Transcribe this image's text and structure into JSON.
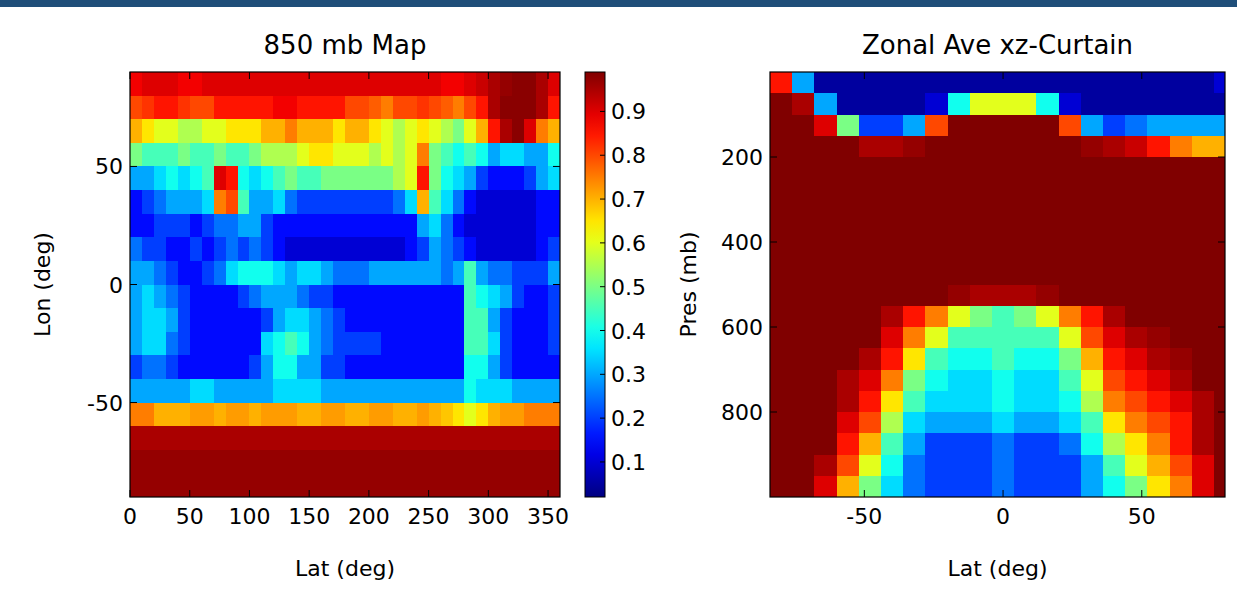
{
  "chart_data": [
    {
      "type": "heatmap",
      "title": "850 mb Map",
      "x_label": "Lat (deg)",
      "y_label": "Lon (deg)",
      "xlim": [
        0,
        360
      ],
      "ylim": [
        -90,
        90
      ],
      "xticks": [
        0,
        50,
        100,
        150,
        200,
        250,
        300,
        350
      ],
      "yticks": [
        -50,
        0,
        50
      ],
      "x": [
        5,
        15,
        25,
        35,
        45,
        55,
        65,
        75,
        85,
        95,
        105,
        115,
        125,
        135,
        145,
        155,
        165,
        175,
        185,
        195,
        205,
        215,
        225,
        235,
        245,
        255,
        265,
        275,
        285,
        295,
        305,
        315,
        325,
        335,
        345,
        355
      ],
      "y": [
        85,
        75,
        65,
        55,
        45,
        35,
        25,
        15,
        5,
        -5,
        -15,
        -25,
        -35,
        -45,
        -55,
        -65,
        -75,
        -85
      ],
      "values": [
        [
          0.88,
          0.9,
          0.9,
          0.9,
          0.88,
          0.88,
          0.9,
          0.9,
          0.9,
          0.9,
          0.9,
          0.9,
          0.9,
          0.9,
          0.9,
          0.9,
          0.9,
          0.9,
          0.9,
          0.9,
          0.9,
          0.9,
          0.9,
          0.9,
          0.9,
          0.9,
          0.88,
          0.88,
          0.9,
          0.92,
          0.95,
          0.97,
          0.98,
          0.98,
          0.95,
          0.9
        ],
        [
          0.8,
          0.82,
          0.85,
          0.85,
          0.82,
          0.8,
          0.8,
          0.85,
          0.85,
          0.85,
          0.85,
          0.85,
          0.88,
          0.88,
          0.85,
          0.85,
          0.85,
          0.85,
          0.8,
          0.8,
          0.78,
          0.75,
          0.8,
          0.8,
          0.82,
          0.8,
          0.78,
          0.75,
          0.8,
          0.85,
          0.95,
          0.98,
          0.98,
          0.98,
          0.95,
          0.85
        ],
        [
          0.7,
          0.65,
          0.6,
          0.6,
          0.55,
          0.55,
          0.6,
          0.6,
          0.65,
          0.65,
          0.65,
          0.7,
          0.7,
          0.75,
          0.7,
          0.7,
          0.7,
          0.65,
          0.7,
          0.7,
          0.65,
          0.6,
          0.55,
          0.6,
          0.65,
          0.6,
          0.55,
          0.5,
          0.6,
          0.7,
          0.85,
          0.95,
          0.98,
          0.9,
          0.75,
          0.7
        ],
        [
          0.5,
          0.45,
          0.45,
          0.45,
          0.5,
          0.45,
          0.45,
          0.5,
          0.45,
          0.45,
          0.5,
          0.55,
          0.55,
          0.55,
          0.6,
          0.65,
          0.65,
          0.6,
          0.6,
          0.6,
          0.55,
          0.6,
          0.55,
          0.6,
          0.75,
          0.5,
          0.45,
          0.4,
          0.45,
          0.4,
          0.3,
          0.35,
          0.35,
          0.3,
          0.3,
          0.4
        ],
        [
          0.3,
          0.3,
          0.35,
          0.4,
          0.35,
          0.4,
          0.45,
          0.9,
          0.85,
          0.4,
          0.35,
          0.4,
          0.45,
          0.5,
          0.45,
          0.45,
          0.5,
          0.5,
          0.5,
          0.5,
          0.5,
          0.5,
          0.55,
          0.6,
          0.85,
          0.5,
          0.4,
          0.35,
          0.3,
          0.2,
          0.15,
          0.15,
          0.15,
          0.2,
          0.3,
          0.35
        ],
        [
          0.15,
          0.2,
          0.25,
          0.3,
          0.3,
          0.3,
          0.35,
          0.75,
          0.8,
          0.45,
          0.3,
          0.3,
          0.35,
          0.25,
          0.2,
          0.2,
          0.2,
          0.2,
          0.2,
          0.2,
          0.2,
          0.2,
          0.25,
          0.35,
          0.7,
          0.45,
          0.35,
          0.25,
          0.15,
          0.1,
          0.1,
          0.1,
          0.1,
          0.1,
          0.15,
          0.15
        ],
        [
          0.15,
          0.15,
          0.2,
          0.2,
          0.2,
          0.15,
          0.2,
          0.25,
          0.25,
          0.3,
          0.3,
          0.2,
          0.15,
          0.15,
          0.15,
          0.15,
          0.15,
          0.15,
          0.15,
          0.15,
          0.15,
          0.15,
          0.15,
          0.15,
          0.3,
          0.35,
          0.25,
          0.15,
          0.1,
          0.1,
          0.1,
          0.1,
          0.1,
          0.1,
          0.15,
          0.15
        ],
        [
          0.25,
          0.2,
          0.2,
          0.15,
          0.15,
          0.2,
          0.15,
          0.2,
          0.25,
          0.2,
          0.25,
          0.2,
          0.15,
          0.1,
          0.1,
          0.1,
          0.1,
          0.1,
          0.1,
          0.1,
          0.1,
          0.1,
          0.1,
          0.15,
          0.2,
          0.3,
          0.25,
          0.2,
          0.15,
          0.1,
          0.1,
          0.1,
          0.1,
          0.1,
          0.15,
          0.2
        ],
        [
          0.3,
          0.3,
          0.25,
          0.2,
          0.15,
          0.15,
          0.2,
          0.25,
          0.35,
          0.4,
          0.4,
          0.4,
          0.35,
          0.3,
          0.35,
          0.35,
          0.3,
          0.25,
          0.25,
          0.25,
          0.3,
          0.3,
          0.3,
          0.3,
          0.3,
          0.3,
          0.25,
          0.3,
          0.45,
          0.3,
          0.25,
          0.25,
          0.2,
          0.2,
          0.2,
          0.3
        ],
        [
          0.3,
          0.35,
          0.3,
          0.25,
          0.2,
          0.15,
          0.15,
          0.15,
          0.15,
          0.2,
          0.25,
          0.3,
          0.3,
          0.3,
          0.25,
          0.2,
          0.2,
          0.15,
          0.15,
          0.15,
          0.15,
          0.15,
          0.15,
          0.15,
          0.15,
          0.15,
          0.15,
          0.15,
          0.45,
          0.4,
          0.35,
          0.3,
          0.2,
          0.15,
          0.15,
          0.2
        ],
        [
          0.3,
          0.35,
          0.35,
          0.3,
          0.2,
          0.15,
          0.15,
          0.15,
          0.15,
          0.15,
          0.15,
          0.2,
          0.3,
          0.35,
          0.35,
          0.3,
          0.25,
          0.2,
          0.15,
          0.15,
          0.15,
          0.15,
          0.15,
          0.15,
          0.15,
          0.15,
          0.15,
          0.15,
          0.45,
          0.45,
          0.3,
          0.2,
          0.15,
          0.15,
          0.15,
          0.2
        ],
        [
          0.3,
          0.35,
          0.35,
          0.25,
          0.2,
          0.15,
          0.15,
          0.15,
          0.15,
          0.15,
          0.15,
          0.35,
          0.4,
          0.45,
          0.4,
          0.3,
          0.25,
          0.2,
          0.2,
          0.2,
          0.2,
          0.15,
          0.15,
          0.15,
          0.15,
          0.15,
          0.15,
          0.15,
          0.45,
          0.45,
          0.35,
          0.2,
          0.15,
          0.15,
          0.15,
          0.2
        ],
        [
          0.2,
          0.25,
          0.25,
          0.2,
          0.15,
          0.15,
          0.15,
          0.15,
          0.15,
          0.15,
          0.2,
          0.3,
          0.4,
          0.4,
          0.3,
          0.3,
          0.2,
          0.2,
          0.15,
          0.15,
          0.15,
          0.15,
          0.15,
          0.15,
          0.15,
          0.15,
          0.15,
          0.15,
          0.4,
          0.4,
          0.3,
          0.2,
          0.15,
          0.15,
          0.15,
          0.15
        ],
        [
          0.3,
          0.3,
          0.3,
          0.3,
          0.3,
          0.35,
          0.35,
          0.3,
          0.3,
          0.3,
          0.3,
          0.3,
          0.35,
          0.35,
          0.35,
          0.35,
          0.3,
          0.3,
          0.3,
          0.3,
          0.3,
          0.3,
          0.3,
          0.3,
          0.3,
          0.3,
          0.3,
          0.3,
          0.4,
          0.35,
          0.35,
          0.35,
          0.3,
          0.3,
          0.3,
          0.3
        ],
        [
          0.75,
          0.75,
          0.7,
          0.7,
          0.7,
          0.72,
          0.72,
          0.7,
          0.72,
          0.72,
          0.7,
          0.72,
          0.72,
          0.72,
          0.7,
          0.7,
          0.72,
          0.72,
          0.7,
          0.7,
          0.72,
          0.72,
          0.7,
          0.7,
          0.72,
          0.7,
          0.68,
          0.65,
          0.6,
          0.65,
          0.7,
          0.72,
          0.72,
          0.75,
          0.75,
          0.75
        ],
        [
          0.95,
          0.95,
          0.95,
          0.95,
          0.95,
          0.95,
          0.95,
          0.95,
          0.95,
          0.95,
          0.95,
          0.95,
          0.95,
          0.95,
          0.95,
          0.95,
          0.95,
          0.95,
          0.95,
          0.95,
          0.95,
          0.95,
          0.95,
          0.95,
          0.95,
          0.95,
          0.95,
          0.95,
          0.95,
          0.95,
          0.95,
          0.95,
          0.95,
          0.95,
          0.95,
          0.95
        ],
        [
          0.97,
          0.97,
          0.97,
          0.97,
          0.97,
          0.97,
          0.97,
          0.97,
          0.97,
          0.97,
          0.97,
          0.97,
          0.97,
          0.97,
          0.97,
          0.97,
          0.97,
          0.97,
          0.97,
          0.97,
          0.97,
          0.97,
          0.97,
          0.97,
          0.97,
          0.97,
          0.97,
          0.97,
          0.97,
          0.97,
          0.97,
          0.97,
          0.97,
          0.97,
          0.97,
          0.97
        ],
        [
          0.97,
          0.97,
          0.97,
          0.97,
          0.97,
          0.97,
          0.97,
          0.97,
          0.97,
          0.97,
          0.97,
          0.97,
          0.97,
          0.97,
          0.97,
          0.97,
          0.97,
          0.97,
          0.97,
          0.97,
          0.97,
          0.97,
          0.97,
          0.97,
          0.97,
          0.97,
          0.97,
          0.97,
          0.97,
          0.97,
          0.97,
          0.97,
          0.97,
          0.97,
          0.97,
          0.97
        ]
      ],
      "colorbar_range": [
        0.02,
        0.99
      ],
      "colorbar_ticks": [
        0.1,
        0.2,
        0.3,
        0.4,
        0.5,
        0.6,
        0.7,
        0.8,
        0.9
      ]
    },
    {
      "type": "heatmap",
      "title": "Zonal Ave xz-Curtain",
      "x_label": "Lat (deg)",
      "y_label": "Pres (mb)",
      "xlim": [
        -84,
        80
      ],
      "ylim": [
        1000,
        0
      ],
      "xticks": [
        -50,
        0,
        50
      ],
      "yticks": [
        200,
        400,
        600,
        800
      ],
      "x": [
        -80,
        -72,
        -64,
        -56,
        -48,
        -40,
        -32,
        -24,
        -16,
        -8,
        0,
        8,
        16,
        24,
        32,
        40,
        48,
        56,
        64,
        72,
        80
      ],
      "y": [
        25,
        75,
        125,
        175,
        225,
        275,
        325,
        375,
        425,
        475,
        525,
        575,
        625,
        675,
        725,
        775,
        825,
        875,
        925,
        975
      ],
      "values": [
        [
          0.85,
          0.3,
          0.05,
          0.05,
          0.05,
          0.05,
          0.05,
          0.05,
          0.05,
          0.05,
          0.05,
          0.05,
          0.05,
          0.05,
          0.05,
          0.05,
          0.05,
          0.05,
          0.05,
          0.05,
          0.1
        ],
        [
          0.99,
          0.95,
          0.3,
          0.05,
          0.05,
          0.05,
          0.05,
          0.1,
          0.4,
          0.6,
          0.6,
          0.6,
          0.4,
          0.1,
          0.05,
          0.05,
          0.05,
          0.05,
          0.05,
          0.05,
          0.05
        ],
        [
          0.99,
          0.99,
          0.9,
          0.5,
          0.2,
          0.2,
          0.3,
          0.8,
          0.99,
          0.99,
          0.99,
          0.99,
          0.99,
          0.8,
          0.3,
          0.2,
          0.25,
          0.3,
          0.3,
          0.3,
          0.3
        ],
        [
          0.99,
          0.99,
          0.99,
          0.99,
          0.95,
          0.95,
          0.97,
          0.99,
          0.99,
          0.99,
          0.99,
          0.99,
          0.99,
          0.99,
          0.97,
          0.95,
          0.92,
          0.85,
          0.75,
          0.7,
          0.7
        ],
        [
          0.99,
          0.99,
          0.99,
          0.99,
          0.99,
          0.99,
          0.99,
          0.99,
          0.99,
          0.99,
          0.99,
          0.99,
          0.99,
          0.99,
          0.99,
          0.99,
          0.99,
          0.99,
          0.99,
          0.99,
          0.99
        ],
        [
          0.99,
          0.99,
          0.99,
          0.99,
          0.99,
          0.99,
          0.99,
          0.99,
          0.99,
          0.99,
          0.99,
          0.99,
          0.99,
          0.99,
          0.99,
          0.99,
          0.99,
          0.99,
          0.99,
          0.99,
          0.99
        ],
        [
          0.99,
          0.99,
          0.99,
          0.99,
          0.99,
          0.99,
          0.99,
          0.99,
          0.99,
          0.99,
          0.99,
          0.99,
          0.99,
          0.99,
          0.99,
          0.99,
          0.99,
          0.99,
          0.99,
          0.99,
          0.99
        ],
        [
          0.99,
          0.99,
          0.99,
          0.99,
          0.99,
          0.99,
          0.99,
          0.99,
          0.99,
          0.99,
          0.99,
          0.99,
          0.99,
          0.99,
          0.99,
          0.99,
          0.99,
          0.99,
          0.99,
          0.99,
          0.99
        ],
        [
          0.99,
          0.99,
          0.99,
          0.99,
          0.99,
          0.99,
          0.99,
          0.99,
          0.99,
          0.99,
          0.99,
          0.99,
          0.99,
          0.99,
          0.99,
          0.99,
          0.99,
          0.99,
          0.99,
          0.99,
          0.99
        ],
        [
          0.99,
          0.99,
          0.99,
          0.99,
          0.99,
          0.99,
          0.99,
          0.99,
          0.99,
          0.99,
          0.99,
          0.99,
          0.99,
          0.99,
          0.99,
          0.99,
          0.99,
          0.99,
          0.99,
          0.99,
          0.99
        ],
        [
          0.99,
          0.99,
          0.99,
          0.99,
          0.99,
          0.99,
          0.99,
          0.99,
          0.97,
          0.95,
          0.95,
          0.95,
          0.97,
          0.99,
          0.99,
          0.99,
          0.99,
          0.99,
          0.99,
          0.99,
          0.99
        ],
        [
          0.99,
          0.99,
          0.99,
          0.99,
          0.99,
          0.95,
          0.85,
          0.75,
          0.6,
          0.5,
          0.45,
          0.5,
          0.6,
          0.75,
          0.85,
          0.95,
          0.99,
          0.99,
          0.99,
          0.99,
          0.99
        ],
        [
          0.99,
          0.99,
          0.99,
          0.99,
          0.99,
          0.9,
          0.75,
          0.6,
          0.45,
          0.45,
          0.45,
          0.45,
          0.45,
          0.6,
          0.8,
          0.9,
          0.95,
          0.97,
          0.99,
          0.99,
          0.99
        ],
        [
          0.99,
          0.99,
          0.99,
          0.99,
          0.95,
          0.85,
          0.65,
          0.45,
          0.4,
          0.4,
          0.45,
          0.4,
          0.4,
          0.5,
          0.7,
          0.85,
          0.9,
          0.95,
          0.97,
          0.99,
          0.99
        ],
        [
          0.99,
          0.99,
          0.99,
          0.95,
          0.9,
          0.75,
          0.5,
          0.4,
          0.35,
          0.35,
          0.4,
          0.35,
          0.35,
          0.45,
          0.6,
          0.8,
          0.85,
          0.9,
          0.95,
          0.99,
          0.99
        ],
        [
          0.99,
          0.99,
          0.99,
          0.95,
          0.85,
          0.65,
          0.45,
          0.35,
          0.35,
          0.35,
          0.4,
          0.35,
          0.35,
          0.4,
          0.55,
          0.75,
          0.8,
          0.85,
          0.9,
          0.95,
          0.99
        ],
        [
          0.99,
          0.99,
          0.99,
          0.9,
          0.8,
          0.55,
          0.35,
          0.3,
          0.3,
          0.3,
          0.35,
          0.3,
          0.3,
          0.35,
          0.45,
          0.65,
          0.75,
          0.8,
          0.85,
          0.95,
          0.99
        ],
        [
          0.99,
          0.99,
          0.99,
          0.85,
          0.7,
          0.45,
          0.3,
          0.2,
          0.2,
          0.2,
          0.25,
          0.2,
          0.2,
          0.25,
          0.4,
          0.55,
          0.65,
          0.75,
          0.85,
          0.95,
          0.99
        ],
        [
          0.99,
          0.99,
          0.95,
          0.8,
          0.6,
          0.4,
          0.25,
          0.2,
          0.2,
          0.2,
          0.25,
          0.2,
          0.2,
          0.2,
          0.3,
          0.45,
          0.6,
          0.7,
          0.8,
          0.9,
          0.99
        ],
        [
          0.99,
          0.99,
          0.9,
          0.7,
          0.5,
          0.35,
          0.25,
          0.2,
          0.2,
          0.2,
          0.25,
          0.2,
          0.2,
          0.2,
          0.3,
          0.4,
          0.5,
          0.65,
          0.75,
          0.9,
          0.99
        ]
      ],
      "colorbar_range": [
        0.02,
        0.99
      ]
    }
  ]
}
